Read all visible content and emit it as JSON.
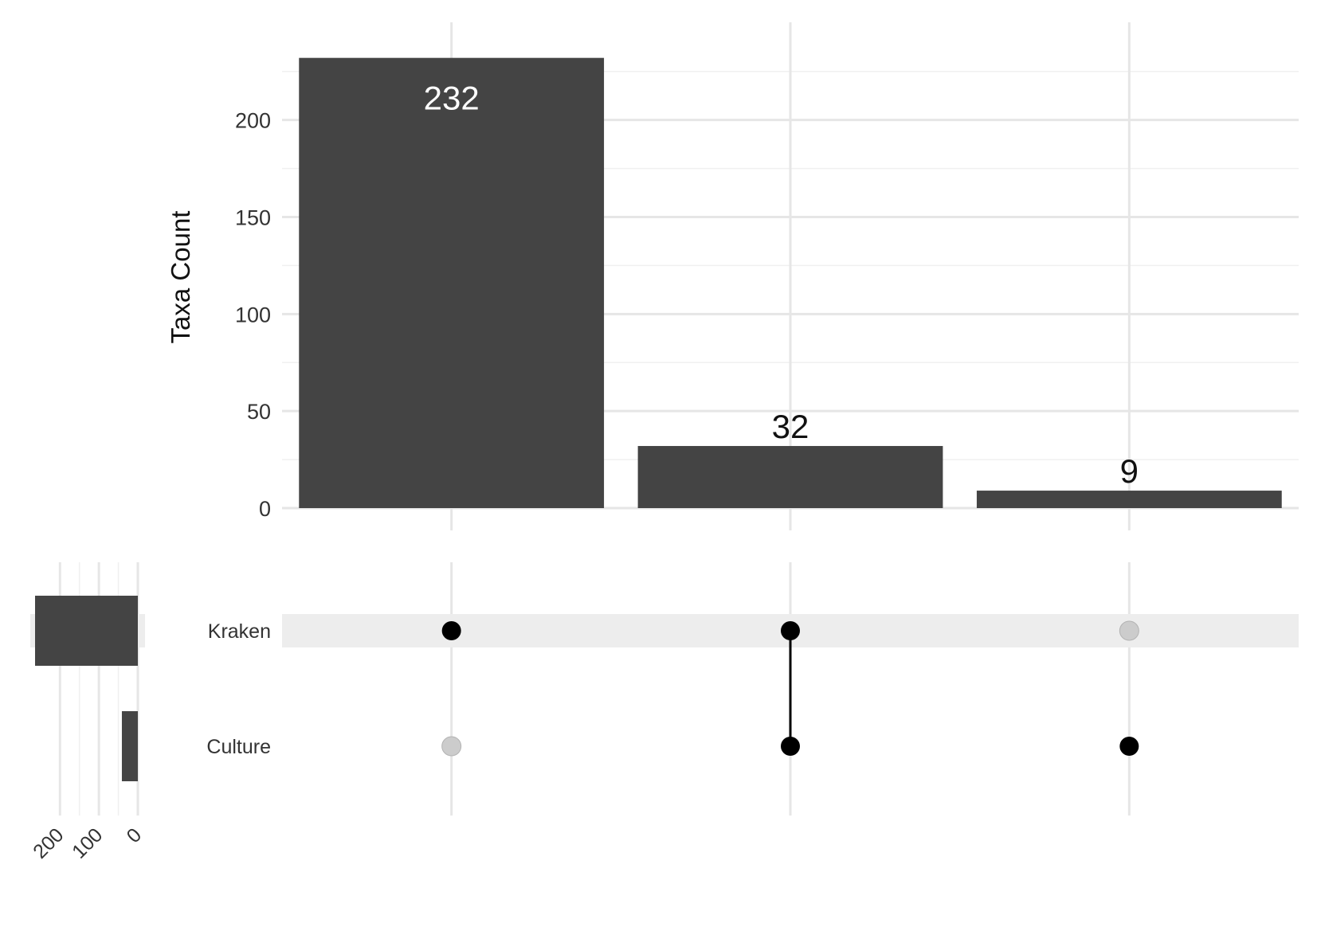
{
  "chart_data": {
    "type": "upset",
    "intersections": [
      {
        "members": [
          "Kraken"
        ],
        "count": 232
      },
      {
        "members": [
          "Kraken",
          "Culture"
        ],
        "count": 32
      },
      {
        "members": [
          "Culture"
        ],
        "count": 9
      }
    ],
    "bar_labels": [
      "232",
      "32",
      "9"
    ],
    "sets": [
      {
        "name": "Kraken",
        "size": 264
      },
      {
        "name": "Culture",
        "size": 41
      }
    ],
    "ylabel": "Taxa Count",
    "ylim": [
      0,
      245
    ],
    "yticks": [
      0,
      50,
      100,
      150,
      200
    ],
    "set_size_ticks": [
      200,
      100,
      0
    ],
    "set_size_max": 264,
    "grid": true,
    "colors": {
      "bar": "#444444",
      "grid": "#e6e6e6",
      "dot_active": "#000000",
      "dot_inactive": "#cccccc",
      "stripe": "#ededed",
      "inside_label": "#ffffff",
      "outside_label": "#111111"
    }
  }
}
